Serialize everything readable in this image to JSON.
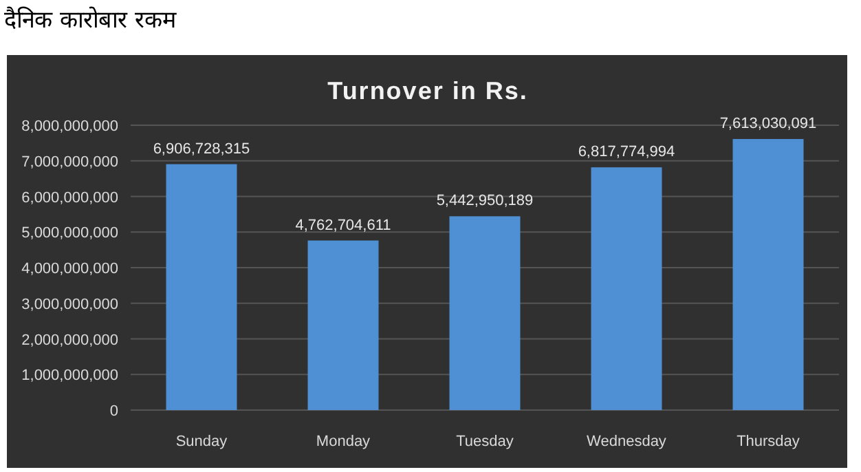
{
  "chart_data": {
    "type": "bar",
    "title": "Turnover in Rs.",
    "annotations": [
      "दैनिक कारोबार रकम"
    ],
    "categories": [
      "Sunday",
      "Monday",
      "Tuesday",
      "Wednesday",
      "Thursday"
    ],
    "values": [
      6906728315,
      4762704611,
      5442950189,
      6817774994,
      7613030091
    ],
    "color": "#4f8fd4",
    "ylim": [
      0,
      8000000000
    ],
    "yticks": [
      {
        "value": 0,
        "label": "0"
      },
      {
        "value": 1000000000,
        "label": "1,000,000,000"
      },
      {
        "value": 2000000000,
        "label": "2,000,000,000"
      },
      {
        "value": 3000000000,
        "label": "3,000,000,000"
      },
      {
        "value": 4000000000,
        "label": "4,000,000,000"
      },
      {
        "value": 5000000000,
        "label": "5,000,000,000"
      },
      {
        "value": 6000000000,
        "label": "6,000,000,000"
      },
      {
        "value": 7000000000,
        "label": "7,000,000,000"
      },
      {
        "value": 8000000000,
        "label": "8,000,000,000"
      }
    ],
    "value_labels": [
      "6,906,728,315",
      "4,762,704,611",
      "5,442,950,189",
      "6,817,774,994",
      "7,613,030,091"
    ],
    "grid": "y"
  }
}
